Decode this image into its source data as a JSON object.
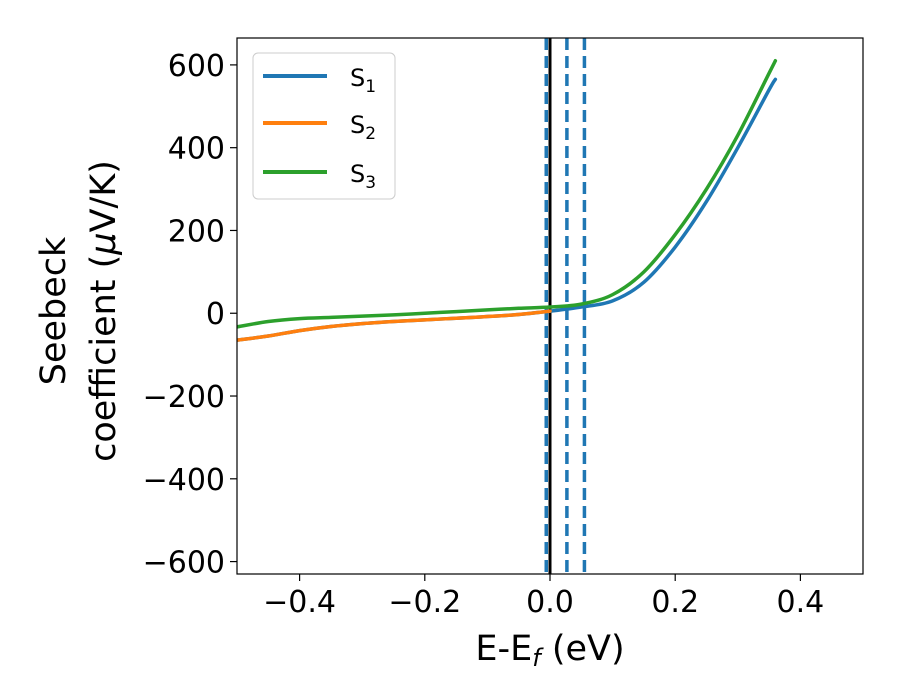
{
  "chart_data": {
    "type": "line",
    "xlabel": "E-E",
    "xlabel_sub": "f",
    "xlabel_unit": " (eV)",
    "ylabel_line1": "Seebeck",
    "ylabel_line2_pre": "coefficient  (",
    "ylabel_mu": "μ",
    "ylabel_line2_post": "V/K)",
    "xlim": [
      -0.5,
      0.5
    ],
    "ylim": [
      -630,
      665
    ],
    "xticks": [
      -0.4,
      -0.2,
      0.0,
      0.2,
      0.4
    ],
    "xtick_labels": [
      "−0.4",
      "−0.2",
      "0.0",
      "0.2",
      "0.4"
    ],
    "yticks": [
      -600,
      -400,
      -200,
      0,
      200,
      400,
      600
    ],
    "ytick_labels": [
      "−600",
      "−400",
      "−200",
      "0",
      "200",
      "400",
      "600"
    ],
    "grid": false,
    "legend_position": "top-left",
    "series": [
      {
        "name": "S",
        "sub": "1",
        "color": "#1f77b4",
        "x": [
          -0.5,
          -0.45,
          -0.4,
          -0.35,
          -0.3,
          -0.25,
          -0.2,
          -0.15,
          -0.1,
          -0.05,
          0.0,
          0.05,
          0.1,
          0.15,
          0.2,
          0.25,
          0.3,
          0.35,
          0.36
        ],
        "y": [
          -65,
          -55,
          -42,
          -32,
          -25,
          -20,
          -16,
          -12,
          -8,
          -3,
          5,
          15,
          30,
          75,
          160,
          270,
          400,
          540,
          565
        ]
      },
      {
        "name": "S",
        "sub": "2",
        "color": "#ff7f0e",
        "x": [
          -0.5,
          -0.45,
          -0.4,
          -0.35,
          -0.3,
          -0.25,
          -0.2,
          -0.15,
          -0.1,
          -0.05,
          0.0
        ],
        "y": [
          -65,
          -55,
          -42,
          -32,
          -25,
          -20,
          -16,
          -12,
          -8,
          -3,
          5
        ]
      },
      {
        "name": "S",
        "sub": "3",
        "color": "#2ca02c",
        "x": [
          -0.5,
          -0.45,
          -0.4,
          -0.35,
          -0.3,
          -0.25,
          -0.2,
          -0.15,
          -0.1,
          -0.05,
          0.0,
          0.05,
          0.1,
          0.15,
          0.2,
          0.25,
          0.3,
          0.35,
          0.36
        ],
        "y": [
          -33,
          -20,
          -13,
          -10,
          -7,
          -4,
          0,
          4,
          8,
          12,
          15,
          22,
          45,
          100,
          190,
          300,
          430,
          580,
          610
        ]
      }
    ],
    "vlines": [
      {
        "x": 0.0,
        "color": "#000000",
        "style": "solid"
      },
      {
        "x": -0.006,
        "color": "#1f77b4",
        "style": "dashed"
      },
      {
        "x": 0.027,
        "color": "#1f77b4",
        "style": "dashed"
      },
      {
        "x": 0.055,
        "color": "#1f77b4",
        "style": "dashed"
      }
    ]
  }
}
